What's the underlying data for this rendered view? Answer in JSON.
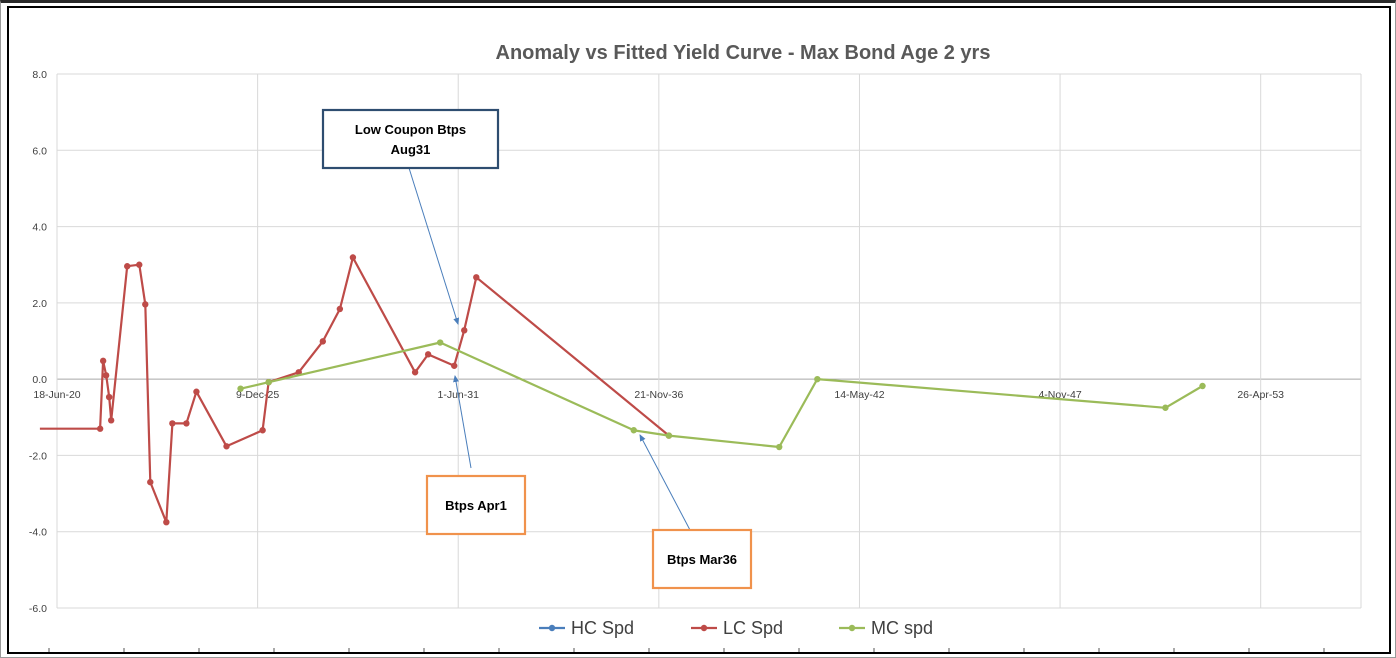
{
  "chart_data": {
    "type": "line",
    "title": "Anomaly vs Fitted Yield Curve - Max Bond Age 2 yrs",
    "xlabel": "",
    "ylabel": "",
    "x_tick_labels": [
      "18-Jun-20",
      "9-Dec-25",
      "1-Jun-31",
      "21-Nov-36",
      "14-May-42",
      "4-Nov-47",
      "26-Apr-53"
    ],
    "x_tick_days": [
      0,
      2000,
      4000,
      6000,
      8000,
      10000,
      12000
    ],
    "xlim": [
      0,
      13000
    ],
    "y_tick_labels": [
      "8.0",
      "6.0",
      "4.0",
      "2.0",
      "0.0",
      "-2.0",
      "-4.0",
      "-6.0"
    ],
    "ylim": [
      -6,
      8
    ],
    "grid": true,
    "legend_position": "bottom",
    "series": [
      {
        "name": "HC Spd",
        "color": "#4a7ebb",
        "points": []
      },
      {
        "name": "LC Spd",
        "color": "#be4b48",
        "points": [
          [
            -170,
            -1.3
          ],
          [
            430,
            -1.3
          ],
          [
            460,
            0.48
          ],
          [
            490,
            0.1
          ],
          [
            520,
            -0.47
          ],
          [
            540,
            -1.08
          ],
          [
            700,
            2.96
          ],
          [
            820,
            3.0
          ],
          [
            880,
            1.96
          ],
          [
            930,
            -2.7
          ],
          [
            1090,
            -3.75
          ],
          [
            1150,
            -1.16
          ],
          [
            1290,
            -1.16
          ],
          [
            1390,
            -0.33
          ],
          [
            1690,
            -1.76
          ],
          [
            2050,
            -1.34
          ],
          [
            2110,
            -0.08
          ],
          [
            2410,
            0.18
          ],
          [
            2650,
            0.99
          ],
          [
            2820,
            1.84
          ],
          [
            2950,
            3.19
          ],
          [
            3570,
            0.18
          ],
          [
            3700,
            0.65
          ],
          [
            3960,
            0.35
          ],
          [
            4060,
            1.28
          ],
          [
            4180,
            2.67
          ],
          [
            6100,
            -1.48
          ]
        ]
      },
      {
        "name": "MC spd",
        "color": "#9bbb59",
        "points": [
          [
            1830,
            -0.25
          ],
          [
            2110,
            -0.08
          ],
          [
            3820,
            0.96
          ],
          [
            5750,
            -1.34
          ],
          [
            6100,
            -1.48
          ],
          [
            7200,
            -1.78
          ],
          [
            7580,
            0.0
          ],
          [
            11050,
            -0.75
          ],
          [
            11420,
            -0.18
          ]
        ]
      }
    ],
    "callouts": [
      {
        "id": "aug31",
        "lines": [
          "Low Coupon Btps",
          "Aug31"
        ],
        "border": "#2e4d70"
      },
      {
        "id": "apr1",
        "lines": [
          "Btps Apr1"
        ],
        "border": "#f0924c"
      },
      {
        "id": "mar36",
        "lines": [
          "Btps Mar36"
        ],
        "border": "#f0924c"
      }
    ]
  }
}
